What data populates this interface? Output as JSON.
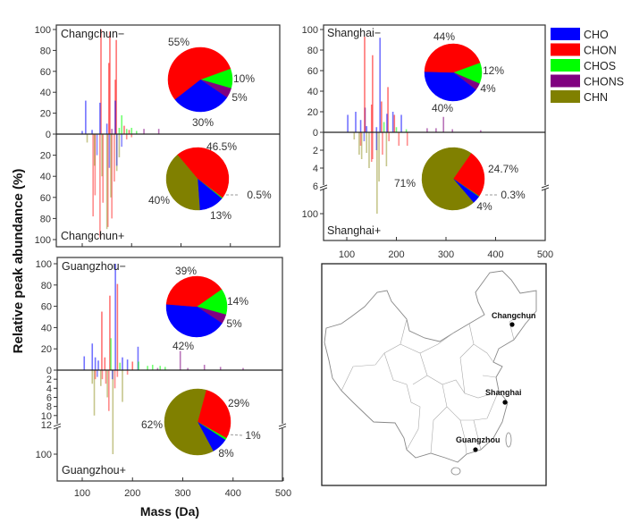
{
  "figure": {
    "ylabel": "Relative peak abundance (%)",
    "xlabel": "Mass (Da)"
  },
  "legend": [
    {
      "label": "CHO",
      "color": "#0000ff"
    },
    {
      "label": "CHON",
      "color": "#ff0000"
    },
    {
      "label": "CHOS",
      "color": "#00ff00"
    },
    {
      "label": "CHONS",
      "color": "#800080"
    },
    {
      "label": "CHN",
      "color": "#808000"
    }
  ],
  "map": {
    "cities": [
      "Changchun",
      "Shanghai",
      "Guangzhou"
    ]
  },
  "chart_data": [
    {
      "type": "bar+pie",
      "title_neg": "Changchun−",
      "title_pos": "Changchun+",
      "xlim": [
        50,
        500
      ],
      "xticks": [
        100,
        200,
        300,
        400,
        500
      ],
      "xtick_labels": [],
      "neg_yticks": [
        "0",
        "20",
        "40",
        "60",
        "80",
        "100"
      ],
      "pos_yticks": [
        "20",
        "40",
        "60",
        "80",
        "100"
      ],
      "pos_axis_break": null,
      "neg_peaks": [
        [
          138,
          100,
          "CHON"
        ],
        [
          154,
          68,
          "CHON"
        ],
        [
          156,
          98,
          "CHON"
        ],
        [
          167,
          52,
          "CHON"
        ],
        [
          169,
          90,
          "CHON"
        ],
        [
          107,
          32,
          "CHO"
        ],
        [
          136,
          30,
          "CHO"
        ],
        [
          167,
          32,
          "CHO"
        ],
        [
          150,
          10,
          "CHO"
        ],
        [
          180,
          18,
          "CHOS"
        ],
        [
          175,
          6,
          "CHOS"
        ],
        [
          190,
          5,
          "CHOS"
        ],
        [
          200,
          6,
          "CHOS"
        ],
        [
          160,
          5,
          "CHONS"
        ],
        [
          225,
          5,
          "CHONS"
        ],
        [
          255,
          5,
          "CHONS"
        ],
        [
          120,
          4,
          "CHO"
        ],
        [
          185,
          8,
          "CHON"
        ],
        [
          195,
          4,
          "CHON"
        ],
        [
          210,
          3,
          "CHOS"
        ],
        [
          100,
          3,
          "CHO"
        ]
      ],
      "pos_peaks": [
        [
          122,
          78,
          "CHON"
        ],
        [
          126,
          58,
          "CHON"
        ],
        [
          136,
          98,
          "CHON"
        ],
        [
          142,
          65,
          "CHON"
        ],
        [
          152,
          88,
          "CHON"
        ],
        [
          160,
          80,
          "CHON"
        ],
        [
          165,
          45,
          "CHON"
        ],
        [
          125,
          30,
          "CHN"
        ],
        [
          140,
          40,
          "CHN"
        ],
        [
          150,
          90,
          "CHN"
        ],
        [
          158,
          60,
          "CHN"
        ],
        [
          170,
          35,
          "CHN"
        ],
        [
          175,
          22,
          "CHN"
        ],
        [
          130,
          20,
          "CHO"
        ],
        [
          155,
          32,
          "CHO"
        ],
        [
          170,
          30,
          "CHO"
        ],
        [
          180,
          12,
          "CHO"
        ],
        [
          190,
          5,
          "CHON"
        ],
        [
          200,
          3,
          "CHON"
        ],
        [
          110,
          8,
          "CHN"
        ]
      ],
      "pie_neg": [
        {
          "class": "CHOS",
          "value": 10,
          "label": "10%"
        },
        {
          "class": "CHONS",
          "value": 5,
          "label": "5%"
        },
        {
          "class": "CHO",
          "value": 30,
          "label": "30%"
        },
        {
          "class": "CHON",
          "value": 55,
          "label": "55%"
        }
      ],
      "pie_pos": [
        {
          "class": "CHON",
          "value": 46.5,
          "label": "46.5%"
        },
        {
          "class": "CHOS",
          "value": 0.5,
          "label": "0.5%"
        },
        {
          "class": "CHO",
          "value": 13,
          "label": "13%"
        },
        {
          "class": "CHN",
          "value": 40,
          "label": "40%"
        }
      ]
    },
    {
      "type": "bar+pie",
      "title_neg": "Shanghai−",
      "title_pos": "Shanghai+",
      "xlim": [
        50,
        500
      ],
      "xticks": [
        100,
        200,
        300,
        400,
        500
      ],
      "xtick_labels": [
        "100",
        "200",
        "300",
        "400",
        "500"
      ],
      "neg_yticks": [
        "0",
        "20",
        "40",
        "60",
        "80",
        "100"
      ],
      "pos_yticks": [
        "2",
        "4",
        "6",
        "100"
      ],
      "pos_axis_break": 6,
      "neg_peaks": [
        [
          102,
          17,
          "CHO"
        ],
        [
          118,
          20,
          "CHO"
        ],
        [
          128,
          12,
          "CHO"
        ],
        [
          136,
          93,
          "CHON"
        ],
        [
          137,
          24,
          "CHONS"
        ],
        [
          152,
          75,
          "CHON"
        ],
        [
          150,
          27,
          "CHON"
        ],
        [
          167,
          92,
          "CHO"
        ],
        [
          170,
          30,
          "CHON"
        ],
        [
          183,
          44,
          "CHON"
        ],
        [
          181,
          18,
          "CHO"
        ],
        [
          193,
          20,
          "CHO"
        ],
        [
          196,
          17,
          "CHON"
        ],
        [
          210,
          17,
          "CHO"
        ],
        [
          175,
          10,
          "CHOS"
        ],
        [
          200,
          5,
          "CHOS"
        ],
        [
          220,
          3,
          "CHOS"
        ],
        [
          262,
          4,
          "CHONS"
        ],
        [
          280,
          4,
          "CHONS"
        ],
        [
          295,
          15,
          "CHONS"
        ],
        [
          313,
          3,
          "CHONS"
        ],
        [
          370,
          2,
          "CHONS"
        ],
        [
          140,
          6,
          "CHO"
        ],
        [
          160,
          5,
          "CHO"
        ]
      ],
      "pos_peaks": [
        [
          161,
          100,
          "CHN"
        ],
        [
          165,
          5.5,
          "CHN"
        ],
        [
          125,
          2.5,
          "CHN"
        ],
        [
          130,
          3,
          "CHN"
        ],
        [
          140,
          2.3,
          "CHN"
        ],
        [
          145,
          4,
          "CHN"
        ],
        [
          152,
          3,
          "CHON"
        ],
        [
          180,
          3.8,
          "CHN"
        ],
        [
          128,
          1.5,
          "CHON"
        ],
        [
          150,
          3.3,
          "CHON"
        ],
        [
          172,
          2.5,
          "CHON"
        ],
        [
          185,
          1,
          "CHON"
        ],
        [
          205,
          1.5,
          "CHON"
        ],
        [
          222,
          1.5,
          "CHON"
        ],
        [
          135,
          1,
          "CHO"
        ],
        [
          160,
          2,
          "CHO"
        ],
        [
          115,
          0.8,
          "CHN"
        ]
      ],
      "pie_neg": [
        {
          "class": "CHOS",
          "value": 12,
          "label": "12%"
        },
        {
          "class": "CHONS",
          "value": 4,
          "label": "4%"
        },
        {
          "class": "CHO",
          "value": 40,
          "label": "40%"
        },
        {
          "class": "CHON",
          "value": 44,
          "label": "44%"
        }
      ],
      "pie_pos": [
        {
          "class": "CHON",
          "value": 24.7,
          "label": "24.7%"
        },
        {
          "class": "CHOS",
          "value": 0.3,
          "label": "0.3%"
        },
        {
          "class": "CHO",
          "value": 4,
          "label": "4%"
        },
        {
          "class": "CHN",
          "value": 71,
          "label": "71%"
        }
      ]
    },
    {
      "type": "bar+pie",
      "title_neg": "Guangzhou−",
      "title_pos": "Guangzhou+",
      "xlim": [
        50,
        500
      ],
      "xticks": [
        100,
        200,
        300,
        400,
        500
      ],
      "xtick_labels": [
        "100",
        "200",
        "300",
        "400",
        "500"
      ],
      "neg_yticks": [
        "0",
        "20",
        "40",
        "60",
        "80",
        "100"
      ],
      "pos_yticks": [
        "2",
        "4",
        "6",
        "8",
        "10",
        "12",
        "100"
      ],
      "pos_axis_break": 12,
      "neg_peaks": [
        [
          104,
          13,
          "CHO"
        ],
        [
          120,
          25,
          "CHO"
        ],
        [
          126,
          12,
          "CHO"
        ],
        [
          139,
          55,
          "CHON"
        ],
        [
          155,
          70,
          "CHON"
        ],
        [
          166,
          100,
          "CHO"
        ],
        [
          170,
          81,
          "CHON"
        ],
        [
          157,
          30,
          "CHOS"
        ],
        [
          132,
          9,
          "CHO"
        ],
        [
          145,
          12,
          "CHON"
        ],
        [
          180,
          12,
          "CHO"
        ],
        [
          190,
          10,
          "CHO"
        ],
        [
          200,
          8,
          "CHON"
        ],
        [
          211,
          22,
          "CHO"
        ],
        [
          175,
          7,
          "CHOS"
        ],
        [
          212,
          8,
          "CHOS"
        ],
        [
          230,
          4,
          "CHOS"
        ],
        [
          240,
          5,
          "CHOS"
        ],
        [
          255,
          4,
          "CHOS"
        ],
        [
          265,
          3,
          "CHOS"
        ],
        [
          295,
          18,
          "CHONS"
        ],
        [
          343,
          5,
          "CHONS"
        ],
        [
          375,
          3,
          "CHONS"
        ],
        [
          420,
          2,
          "CHONS"
        ],
        [
          250,
          2,
          "CHONS"
        ],
        [
          310,
          2,
          "CHONS"
        ]
      ],
      "pos_peaks": [
        [
          161,
          100,
          "CHN"
        ],
        [
          124,
          10,
          "CHN"
        ],
        [
          120,
          3,
          "CHN"
        ],
        [
          137,
          3.5,
          "CHN"
        ],
        [
          150,
          6,
          "CHN"
        ],
        [
          153,
          9,
          "CHON"
        ],
        [
          147,
          3,
          "CHON"
        ],
        [
          126,
          2,
          "CHON"
        ],
        [
          165,
          4,
          "CHON"
        ],
        [
          180,
          7,
          "CHN"
        ],
        [
          130,
          1.5,
          "CHO"
        ],
        [
          160,
          2,
          "CHO"
        ],
        [
          170,
          1.5,
          "CHON"
        ],
        [
          190,
          1,
          "CHON"
        ],
        [
          140,
          2,
          "CHON"
        ]
      ],
      "pie_neg": [
        {
          "class": "CHOS",
          "value": 14,
          "label": "14%"
        },
        {
          "class": "CHONS",
          "value": 5,
          "label": "5%"
        },
        {
          "class": "CHO",
          "value": 42,
          "label": "42%"
        },
        {
          "class": "CHON",
          "value": 39,
          "label": "39%"
        }
      ],
      "pie_pos": [
        {
          "class": "CHON",
          "value": 29,
          "label": "29%"
        },
        {
          "class": "CHOS",
          "value": 1,
          "label": "1%"
        },
        {
          "class": "CHO",
          "value": 8,
          "label": "8%"
        },
        {
          "class": "CHN",
          "value": 62,
          "label": "62%"
        }
      ]
    }
  ]
}
